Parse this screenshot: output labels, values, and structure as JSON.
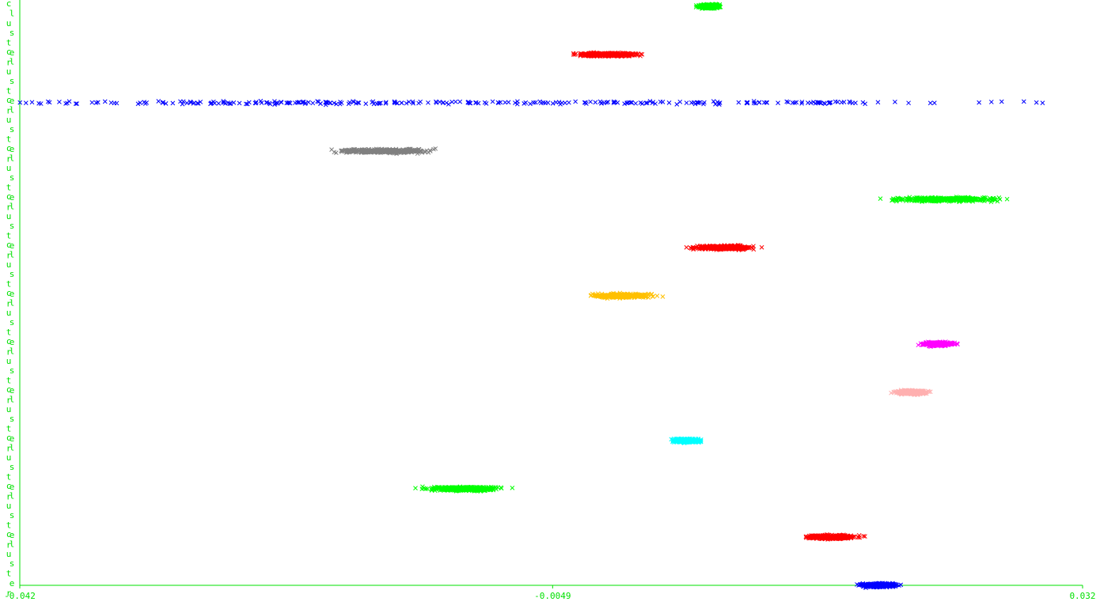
{
  "chart_data": {
    "type": "scatter",
    "title": "",
    "xlabel": "",
    "ylabel": "",
    "xlim": [
      -0.042,
      0.032
    ],
    "x_ticks": [
      "-0.042",
      "-0.0049",
      "0.032"
    ],
    "y_label_text": "cluster",
    "y_label_count": 12,
    "grid": false,
    "legend": "none",
    "marker": "x",
    "axis_color": "#00e000",
    "series": [
      {
        "row": 0,
        "color": "#00ff00",
        "x_range": [
          0.0046,
          0.0074
        ],
        "spread": "narrow"
      },
      {
        "row": 1,
        "color": "#ff0000",
        "x_range": [
          -0.0049,
          0.0027
        ],
        "spread": "moderate"
      },
      {
        "row": 2,
        "color": "#0000ff",
        "x_range": [
          -0.042,
          0.032
        ],
        "spread": "wide"
      },
      {
        "row": 3,
        "color": "#808080",
        "x_range": [
          -0.0226,
          -0.0107
        ],
        "spread": "moderate"
      },
      {
        "row": 4,
        "color": "#00ff00",
        "x_range": [
          0.0158,
          0.0293
        ],
        "spread": "moderate"
      },
      {
        "row": 5,
        "color": "#ff0000",
        "x_range": [
          0.0032,
          0.0109
        ],
        "spread": "moderate"
      },
      {
        "row": 6,
        "color": "#ffc000",
        "x_range": [
          -0.0038,
          0.0037
        ],
        "spread": "moderate"
      },
      {
        "row": 7,
        "color": "#ff00ff",
        "x_range": [
          0.0198,
          0.0241
        ],
        "spread": "narrow"
      },
      {
        "row": 8,
        "color": "#ffb0b0",
        "x_range": [
          0.018,
          0.0222
        ],
        "spread": "narrow"
      },
      {
        "row": 9,
        "color": "#00ffff",
        "x_range": [
          0.0026,
          0.0063
        ],
        "spread": "narrow"
      },
      {
        "row": 10,
        "color": "#00ff00",
        "x_range": [
          -0.0156,
          -0.0065
        ],
        "spread": "moderate"
      },
      {
        "row": 11,
        "color": "#ff0000",
        "x_range": [
          0.0113,
          0.0178
        ],
        "spread": "moderate"
      },
      {
        "row": 12,
        "color": "#0000ff",
        "x_range": [
          0.0155,
          0.02
        ],
        "spread": "narrow"
      }
    ]
  }
}
